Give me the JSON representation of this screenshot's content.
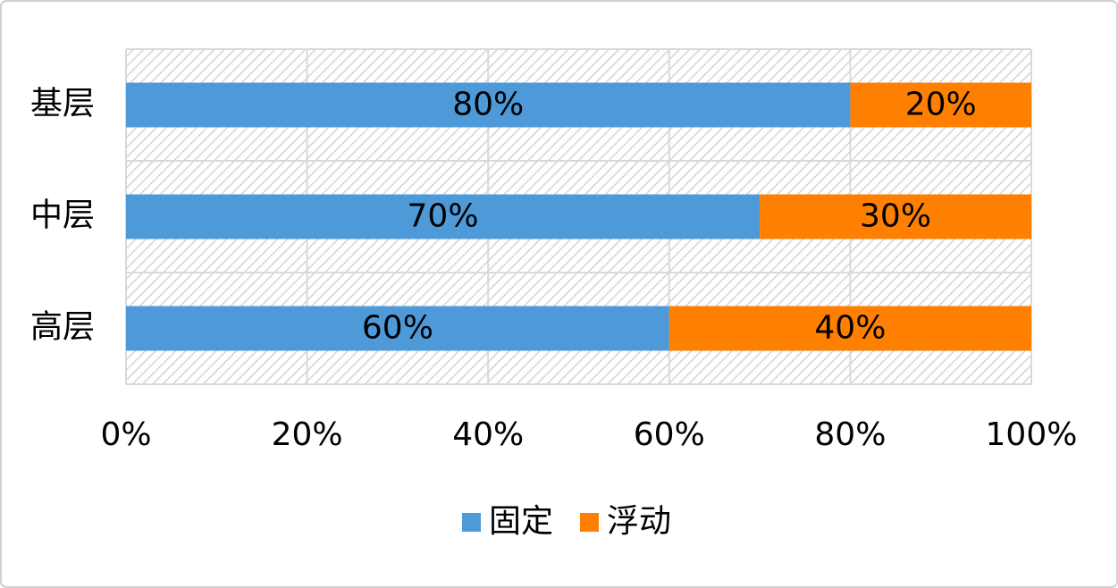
{
  "chart_data": {
    "type": "bar",
    "orientation": "horizontal",
    "stacked": true,
    "categories": [
      "基层",
      "中层",
      "高层"
    ],
    "series": [
      {
        "name": "固定",
        "color": "#4e9ad9",
        "values": [
          80,
          70,
          60
        ],
        "value_labels": [
          "80%",
          "70%",
          "60%"
        ]
      },
      {
        "name": "浮动",
        "color": "#ff7f00",
        "values": [
          20,
          30,
          40
        ],
        "value_labels": [
          "20%",
          "30%",
          "40%"
        ]
      }
    ],
    "xlim": [
      0,
      100
    ],
    "xticks": [
      {
        "value": 0,
        "label": "0%"
      },
      {
        "value": 20,
        "label": "20%"
      },
      {
        "value": 40,
        "label": "40%"
      },
      {
        "value": 60,
        "label": "60%"
      },
      {
        "value": 80,
        "label": "80%"
      },
      {
        "value": 100,
        "label": "100%"
      }
    ],
    "grid": true,
    "legend": "bottom"
  }
}
